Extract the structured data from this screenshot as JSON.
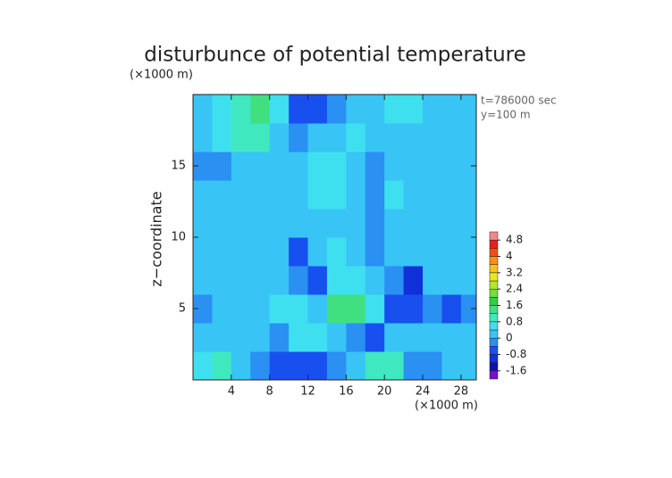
{
  "chart_data": {
    "type": "contour",
    "title": "disturbunce of potential temperature",
    "y_unit_label": "(×1000 m)",
    "x_unit_label": "(×1000 m)",
    "ylabel": "z−coordinate",
    "annotations": [
      "t=786000 sec",
      "y=100 m"
    ],
    "xlim": [
      0,
      29.6
    ],
    "ylim": [
      0,
      20
    ],
    "xticks": [
      4,
      8,
      12,
      16,
      20,
      24,
      28
    ],
    "yticks": [
      5,
      10,
      15
    ],
    "x": [
      1,
      3,
      5,
      7,
      9,
      11,
      13,
      15,
      17,
      19,
      21,
      23,
      25,
      27,
      29
    ],
    "z": [
      1,
      3,
      5,
      7,
      9,
      11,
      13,
      15,
      17,
      19
    ],
    "values": [
      [
        0.6,
        0.8,
        0,
        -0.4,
        -0.8,
        -0.8,
        -0.6,
        -0.4,
        0,
        0.8,
        0.8,
        -0.2,
        -0.4,
        0.2,
        0.2
      ],
      [
        0,
        0.2,
        0,
        0,
        -0.2,
        0.6,
        0.4,
        0,
        -0.4,
        -0.6,
        0,
        0,
        0,
        0,
        0.2
      ],
      [
        -0.4,
        0,
        0.2,
        0.2,
        0.4,
        0.4,
        0,
        1.2,
        1.4,
        0.4,
        -0.6,
        -0.8,
        -0.2,
        -0.6,
        -0.4
      ],
      [
        0,
        0,
        0,
        0.2,
        0.2,
        -0.4,
        -0.6,
        0.4,
        0.4,
        0.2,
        -0.4,
        -1.0,
        0,
        0,
        0.2
      ],
      [
        0,
        0,
        0,
        0,
        0,
        -0.6,
        0.2,
        0.4,
        0,
        -0.4,
        0,
        0,
        0,
        0.2,
        0
      ],
      [
        0,
        0,
        0,
        0,
        0.2,
        0,
        0.2,
        0.2,
        0.2,
        -0.4,
        0.2,
        0,
        0.2,
        0,
        0.2
      ],
      [
        0,
        0,
        0,
        0,
        0.2,
        0.2,
        0.4,
        0.4,
        0.2,
        -0.2,
        0.4,
        0.2,
        0,
        0,
        0
      ],
      [
        -0.4,
        -0.4,
        0,
        0,
        0,
        0.2,
        0.4,
        0.4,
        0,
        -0.2,
        0.2,
        0.2,
        0,
        0.2,
        0.2
      ],
      [
        0.2,
        0.4,
        1.0,
        0.8,
        0.2,
        -0.2,
        0,
        0.2,
        0.4,
        0,
        0,
        0.2,
        0,
        0,
        0.2
      ],
      [
        0.2,
        0.4,
        0.8,
        1.2,
        0.6,
        -0.6,
        -0.8,
        -0.4,
        0,
        0.2,
        0.6,
        0.6,
        0.2,
        0,
        0
      ]
    ],
    "colorbar": {
      "levels": [
        -2.0,
        -1.6,
        -1.2,
        -0.8,
        -0.4,
        0,
        0.4,
        0.8,
        1.2,
        1.6,
        2.0,
        2.4,
        2.8,
        3.2,
        3.6,
        4.0,
        4.4,
        4.8,
        5.2
      ],
      "colors": [
        "#7a10c8",
        "#1010b0",
        "#1030d8",
        "#1850f0",
        "#2a90f2",
        "#38c4f5",
        "#3ee0f0",
        "#40e8c0",
        "#40e080",
        "#30d040",
        "#70e040",
        "#b0e830",
        "#e8e820",
        "#f8c020",
        "#f89018",
        "#f05018",
        "#e82020",
        "#f08a8a"
      ],
      "ticks": [
        -1.6,
        -0.8,
        0,
        0.8,
        1.6,
        2.4,
        3.2,
        4,
        4.8
      ]
    }
  }
}
